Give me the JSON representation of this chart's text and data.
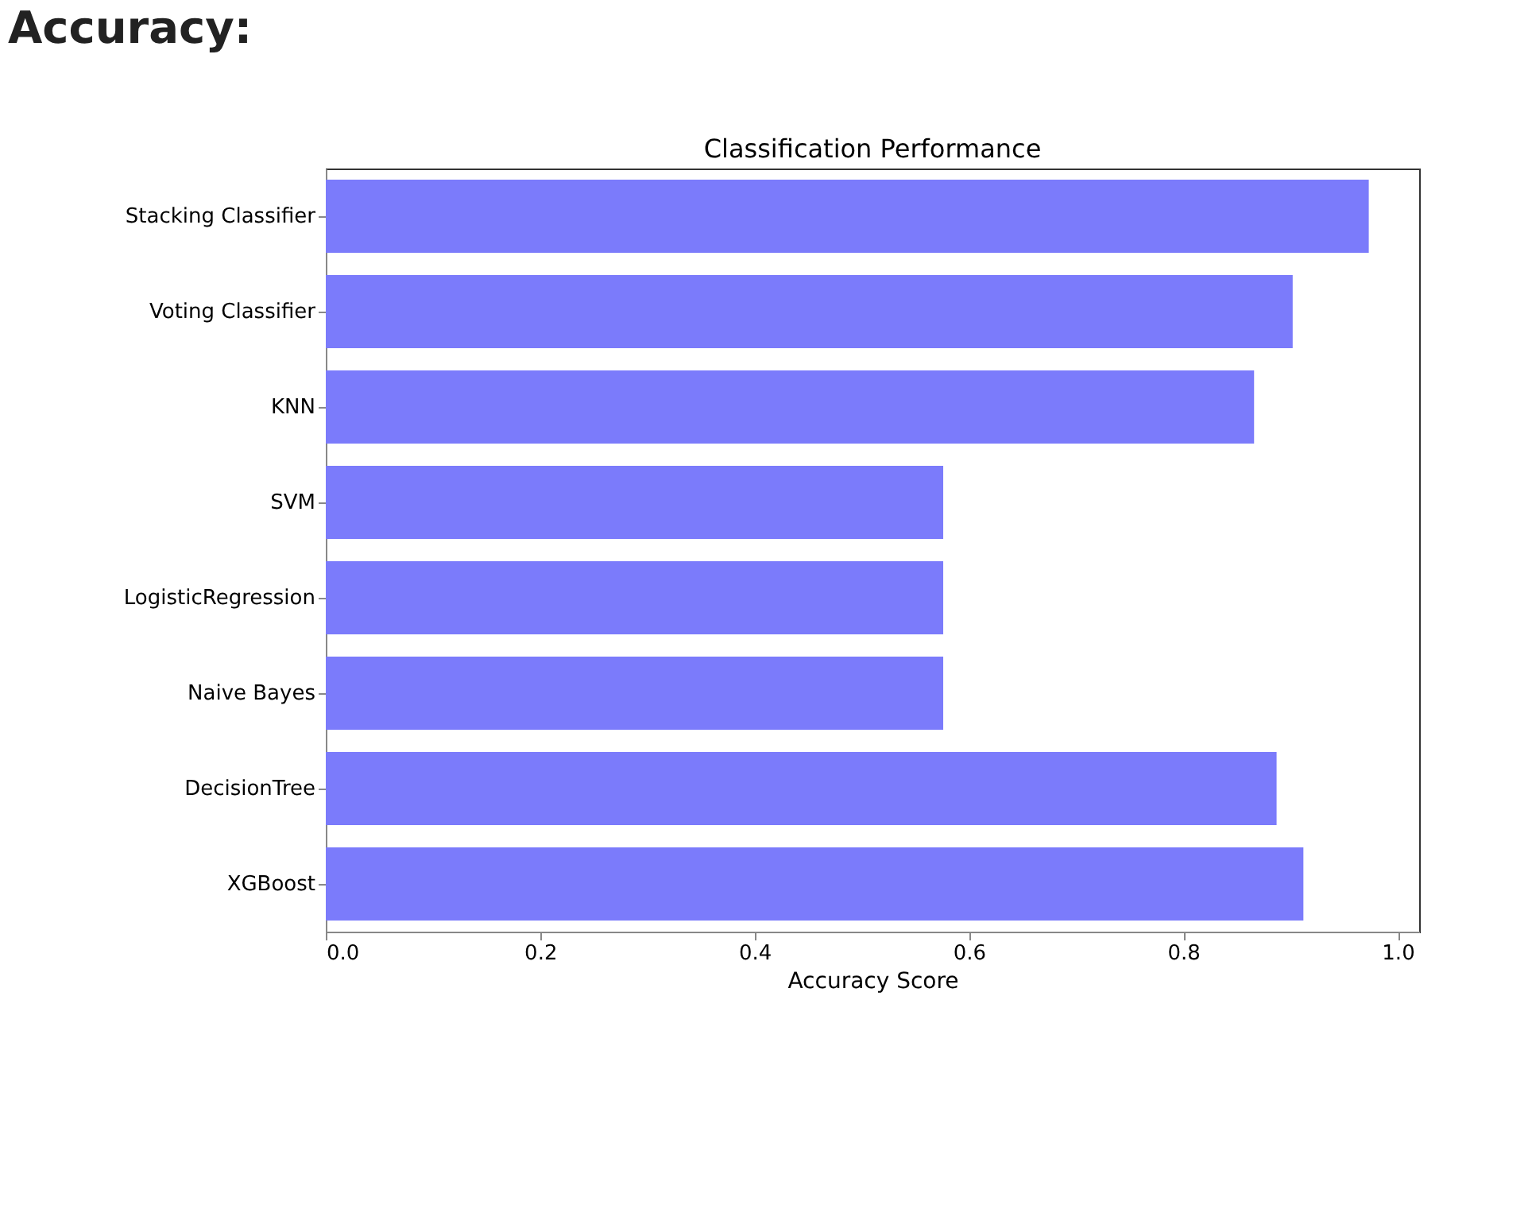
{
  "chart_data": {
    "type": "bar",
    "orientation": "horizontal",
    "title": "Classification Performance",
    "xlabel": "Accuracy Score",
    "annotations": [
      "Accuracy:"
    ],
    "categories": [
      "Stacking Classifier",
      "Voting Classifier",
      "KNN",
      "SVM",
      "LogisticRegression",
      "Naive Bayes",
      "DecisionTree",
      "XGBoost"
    ],
    "values": [
      0.973,
      0.902,
      0.866,
      0.576,
      0.576,
      0.576,
      0.887,
      0.912
    ],
    "color": "#7b7bfb",
    "xlim": [
      0,
      1.02
    ],
    "xticks": [
      {
        "value": 0,
        "label": "0.0"
      },
      0.2,
      0.4,
      0.6,
      0.8,
      {
        "value": 1,
        "label": "1.0"
      }
    ],
    "grid": false
  }
}
